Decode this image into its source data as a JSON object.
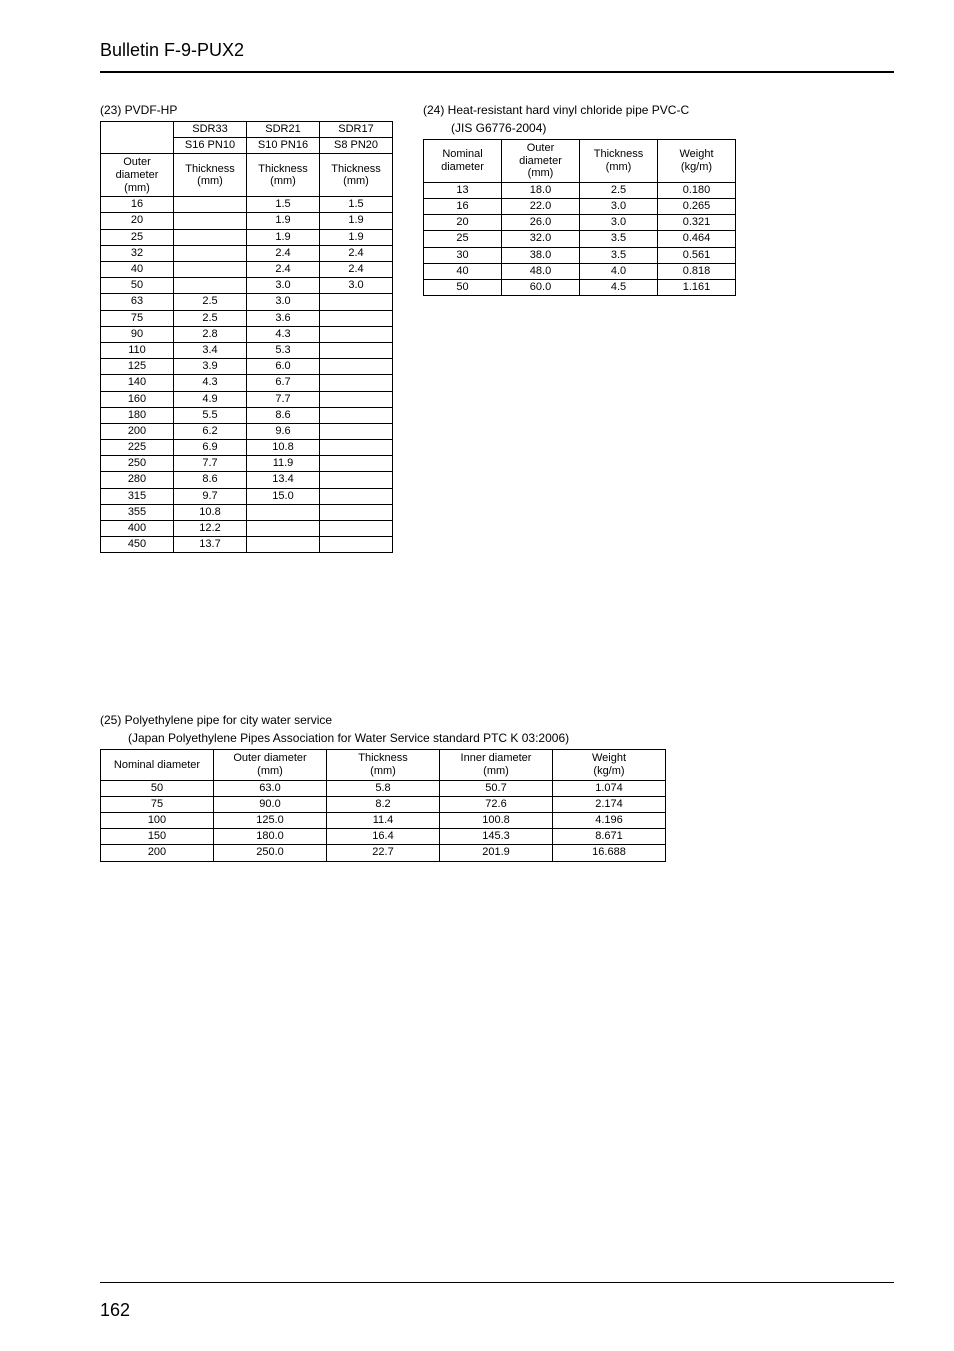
{
  "header": "Bulletin F-9-PUX2",
  "page_number": "162",
  "section23": {
    "title": "(23)  PVDF-HP",
    "col_headers_row1": [
      "",
      "SDR33",
      "SDR21",
      "SDR17"
    ],
    "col_headers_row2": [
      "",
      "S16   PN10",
      "S10   PN16",
      "S8   PN20"
    ],
    "col_headers_row3": [
      "Outer diameter (mm)",
      "Thickness (mm)",
      "Thickness (mm)",
      "Thickness (mm)"
    ],
    "rows": [
      [
        "16",
        "",
        "1.5",
        "1.5"
      ],
      [
        "20",
        "",
        "1.9",
        "1.9"
      ],
      [
        "25",
        "",
        "1.9",
        "1.9"
      ],
      [
        "32",
        "",
        "2.4",
        "2.4"
      ],
      [
        "40",
        "",
        "2.4",
        "2.4"
      ],
      [
        "50",
        "",
        "3.0",
        "3.0"
      ],
      [
        "63",
        "2.5",
        "3.0",
        ""
      ],
      [
        "75",
        "2.5",
        "3.6",
        ""
      ],
      [
        "90",
        "2.8",
        "4.3",
        ""
      ],
      [
        "110",
        "3.4",
        "5.3",
        ""
      ],
      [
        "125",
        "3.9",
        "6.0",
        ""
      ],
      [
        "140",
        "4.3",
        "6.7",
        ""
      ],
      [
        "160",
        "4.9",
        "7.7",
        ""
      ],
      [
        "180",
        "5.5",
        "8.6",
        ""
      ],
      [
        "200",
        "6.2",
        "9.6",
        ""
      ],
      [
        "225",
        "6.9",
        "10.8",
        ""
      ],
      [
        "250",
        "7.7",
        "11.9",
        ""
      ],
      [
        "280",
        "8.6",
        "13.4",
        ""
      ],
      [
        "315",
        "9.7",
        "15.0",
        ""
      ],
      [
        "355",
        "10.8",
        "",
        ""
      ],
      [
        "400",
        "12.2",
        "",
        ""
      ],
      [
        "450",
        "13.7",
        "",
        ""
      ]
    ]
  },
  "section24": {
    "title_line1": "(24)  Heat-resistant hard vinyl chloride pipe PVC-C",
    "title_line2": "(JIS G6776-2004)",
    "headers": [
      "Nominal diameter",
      "Outer diameter (mm)",
      "Thickness (mm)",
      "Weight (kg/m)"
    ],
    "rows": [
      [
        "13",
        "18.0",
        "2.5",
        "0.180"
      ],
      [
        "16",
        "22.0",
        "3.0",
        "0.265"
      ],
      [
        "20",
        "26.0",
        "3.0",
        "0.321"
      ],
      [
        "25",
        "32.0",
        "3.5",
        "0.464"
      ],
      [
        "30",
        "38.0",
        "3.5",
        "0.561"
      ],
      [
        "40",
        "48.0",
        "4.0",
        "0.818"
      ],
      [
        "50",
        "60.0",
        "4.5",
        "1.161"
      ]
    ]
  },
  "section25": {
    "title_line1": "(25)  Polyethylene pipe for city water service",
    "title_line2": "(Japan Polyethylene Pipes Association for Water Service standard PTC K 03:2006)",
    "headers": [
      "Nominal diameter",
      "Outer diameter (mm)",
      "Thickness (mm)",
      "Inner diameter (mm)",
      "Weight (kg/m)"
    ],
    "rows": [
      [
        "50",
        "63.0",
        "5.8",
        "50.7",
        "1.074"
      ],
      [
        "75",
        "90.0",
        "8.2",
        "72.6",
        "2.174"
      ],
      [
        "100",
        "125.0",
        "11.4",
        "100.8",
        "4.196"
      ],
      [
        "150",
        "180.0",
        "16.4",
        "145.3",
        "8.671"
      ],
      [
        "200",
        "250.0",
        "22.7",
        "201.9",
        "16.688"
      ]
    ]
  }
}
